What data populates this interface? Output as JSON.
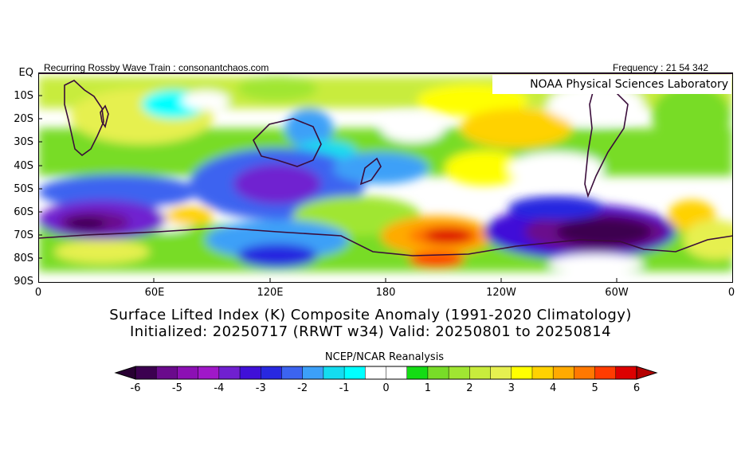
{
  "header": {
    "left_text": "Recurring Rossby Wave Train : consonantchaos.com",
    "right_text": "Frequency : 21 54 342",
    "lab_text": "NOAA Physical Sciences Laboratory"
  },
  "map": {
    "lat_labels": [
      "EQ",
      "10S",
      "20S",
      "30S",
      "40S",
      "50S",
      "60S",
      "70S",
      "80S",
      "90S"
    ],
    "lon_labels": [
      "0",
      "60E",
      "120E",
      "180",
      "120W",
      "60W",
      "0"
    ],
    "anomaly_features": [
      {
        "name": "South Atlantic negative",
        "value": -5.5
      },
      {
        "name": "South Indian Ocean negative",
        "value": -4.5
      },
      {
        "name": "Tasman Sea negative",
        "value": -2.0
      },
      {
        "name": "Central South Pacific positive",
        "value": 5.5
      },
      {
        "name": "Amundsen Sea negative",
        "value": -6.0
      },
      {
        "name": "Tropical Pacific positive",
        "value": 1.5
      },
      {
        "name": "Indian Ocean tropics positive",
        "value": 2.0
      }
    ]
  },
  "title": {
    "line1": "Surface Lifted Index (K) Composite Anomaly (1991-2020 Climatology)",
    "line2": "Initialized: 20250717 (RRWT w34) Valid: 20250801 to 20250814"
  },
  "colorbar": {
    "source_label": "NCEP/NCAR Reanalysis",
    "tick_labels": [
      "-6",
      "-5",
      "-4",
      "-3",
      "-2",
      "-1",
      "0",
      "1",
      "2",
      "3",
      "4",
      "5",
      "6"
    ],
    "colors": [
      "#3c0050",
      "#6a0a8c",
      "#8c10b4",
      "#a018c8",
      "#7020d0",
      "#4010d8",
      "#2828e0",
      "#3c64f0",
      "#3ca0f8",
      "#14dcf0",
      "#00ffff",
      "#ffffff",
      "#ffffff",
      "#14dc14",
      "#78dc28",
      "#a0e632",
      "#c8ec3c",
      "#e6f050",
      "#ffff00",
      "#ffd200",
      "#ffaa00",
      "#ff7800",
      "#ff3c00",
      "#dc0000"
    ],
    "under_color": "#280032",
    "over_color": "#b40000"
  }
}
